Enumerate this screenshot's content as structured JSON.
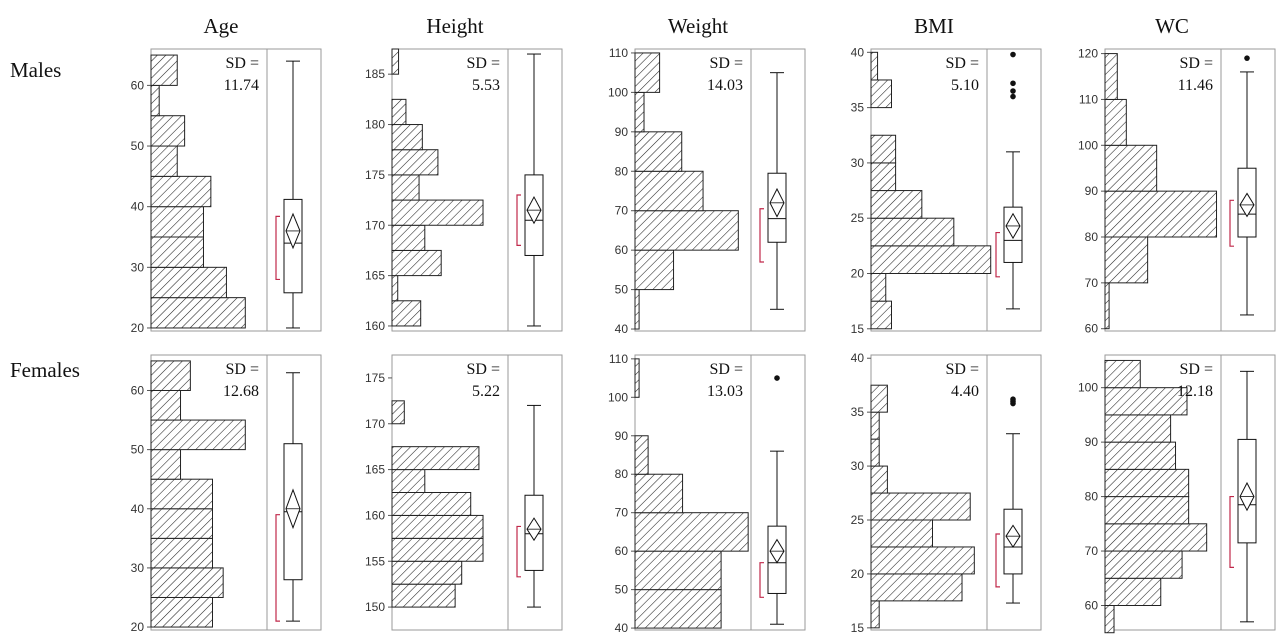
{
  "columns": [
    "Age",
    "Height",
    "Weight",
    "BMI",
    "WC"
  ],
  "rows": [
    "Males",
    "Females"
  ],
  "sd_label": "SD =",
  "chart_data": [
    {
      "type": "histogram_boxplot",
      "group": "Males",
      "variable": "Age",
      "ylim": [
        19.5,
        66
      ],
      "yticks": [
        20,
        30,
        40,
        50,
        60
      ],
      "sd": "11.74",
      "bins": [
        [
          20,
          25,
          11.5
        ],
        [
          25,
          30,
          9.2
        ],
        [
          30,
          35,
          6.4
        ],
        [
          35,
          40,
          6.4
        ],
        [
          40,
          45,
          7.3
        ],
        [
          45,
          50,
          3.2
        ],
        [
          50,
          55,
          4.1
        ],
        [
          55,
          60,
          1.0
        ],
        [
          60,
          65,
          3.2
        ]
      ],
      "box": {
        "min": 20,
        "q1": 25.8,
        "median": 34,
        "q3": 41.2,
        "max": 64,
        "mean": 36,
        "mean_ci": [
          33.2,
          38.8
        ],
        "shortest_half": [
          28,
          38.4
        ]
      },
      "outliers": []
    },
    {
      "type": "histogram_boxplot",
      "group": "Males",
      "variable": "Height",
      "ylim": [
        159.5,
        187.5
      ],
      "yticks": [
        160,
        165,
        170,
        175,
        180,
        185
      ],
      "sd": "5.53",
      "bins": [
        [
          160,
          162.5,
          3.5
        ],
        [
          162.5,
          165,
          0.7
        ],
        [
          165,
          167.5,
          6.0
        ],
        [
          167.5,
          170,
          4.0
        ],
        [
          170,
          172.5,
          11.1
        ],
        [
          172.5,
          175,
          3.3
        ],
        [
          175,
          177.5,
          5.6
        ],
        [
          177.5,
          180,
          3.7
        ],
        [
          180,
          182.5,
          1.7
        ],
        [
          182.5,
          185,
          0
        ],
        [
          185,
          187.5,
          0.8
        ]
      ],
      "box": {
        "min": 160,
        "q1": 167,
        "median": 170.5,
        "q3": 175,
        "max": 187,
        "mean": 171.5,
        "mean_ci": [
          170.2,
          172.8
        ],
        "shortest_half": [
          168,
          173
        ]
      },
      "outliers": []
    },
    {
      "type": "histogram_boxplot",
      "group": "Males",
      "variable": "Weight",
      "ylim": [
        39.5,
        111
      ],
      "yticks": [
        40,
        50,
        60,
        70,
        80,
        90,
        100,
        110
      ],
      "sd": "14.03",
      "bins": [
        [
          40,
          50,
          0.5
        ],
        [
          50,
          60,
          4.7
        ],
        [
          60,
          70,
          12.6
        ],
        [
          70,
          80,
          8.3
        ],
        [
          80,
          90,
          5.7
        ],
        [
          90,
          100,
          1.1
        ],
        [
          100,
          110,
          3.0
        ]
      ],
      "box": {
        "min": 45,
        "q1": 62,
        "median": 68,
        "q3": 79.5,
        "max": 105,
        "mean": 72,
        "mean_ci": [
          68.5,
          75.5
        ],
        "shortest_half": [
          57,
          70.5
        ]
      },
      "outliers": []
    },
    {
      "type": "histogram_boxplot",
      "group": "Males",
      "variable": "BMI",
      "ylim": [
        14.8,
        40.3
      ],
      "yticks": [
        15,
        20,
        25,
        30,
        35,
        40
      ],
      "sd": "5.10",
      "bins": [
        [
          15,
          17.5,
          2.5
        ],
        [
          17.5,
          20,
          1.8
        ],
        [
          20,
          22.5,
          14.6
        ],
        [
          22.5,
          25,
          10.1
        ],
        [
          25,
          27.5,
          6.2
        ],
        [
          27.5,
          30,
          3.0
        ],
        [
          30,
          32.5,
          3.0
        ],
        [
          32.5,
          35,
          0
        ],
        [
          35,
          37.5,
          2.5
        ],
        [
          37.5,
          40,
          0.8
        ]
      ],
      "box": {
        "min": 16.8,
        "q1": 21,
        "median": 23,
        "q3": 26,
        "max": 31,
        "mean": 24.3,
        "mean_ci": [
          23.2,
          25.4
        ],
        "shortest_half": [
          19.7,
          23.7
        ]
      },
      "outliers": [
        36,
        36.5,
        37.2,
        39.8
      ]
    },
    {
      "type": "histogram_boxplot",
      "group": "Males",
      "variable": "WC",
      "ylim": [
        59.5,
        121
      ],
      "yticks": [
        60,
        70,
        80,
        90,
        100,
        110,
        120
      ],
      "sd": "11.46",
      "bins": [
        [
          60,
          70,
          0.5
        ],
        [
          70,
          80,
          5.2
        ],
        [
          80,
          90,
          13.6
        ],
        [
          90,
          100,
          6.3
        ],
        [
          100,
          110,
          2.6
        ],
        [
          110,
          120,
          1.5
        ]
      ],
      "box": {
        "min": 63,
        "q1": 80,
        "median": 85,
        "q3": 95,
        "max": 116,
        "mean": 87,
        "mean_ci": [
          84.5,
          89.5
        ],
        "shortest_half": [
          78,
          88
        ]
      },
      "outliers": [
        119
      ]
    },
    {
      "type": "histogram_boxplot",
      "group": "Females",
      "variable": "Age",
      "ylim": [
        19.5,
        66
      ],
      "yticks": [
        20,
        30,
        40,
        50,
        60
      ],
      "sd": "12.68",
      "bins": [
        [
          20,
          25,
          7.5
        ],
        [
          25,
          30,
          8.8
        ],
        [
          30,
          35,
          7.5
        ],
        [
          35,
          40,
          7.5
        ],
        [
          40,
          45,
          7.5
        ],
        [
          45,
          50,
          3.6
        ],
        [
          50,
          55,
          11.5
        ],
        [
          55,
          60,
          3.6
        ],
        [
          60,
          65,
          4.8
        ]
      ],
      "box": {
        "min": 21,
        "q1": 28,
        "median": 39.5,
        "q3": 51,
        "max": 63,
        "mean": 40,
        "mean_ci": [
          36.8,
          43.2
        ],
        "shortest_half": [
          21,
          39
        ]
      },
      "outliers": []
    },
    {
      "type": "histogram_boxplot",
      "group": "Females",
      "variable": "Height",
      "ylim": [
        147.5,
        177.5
      ],
      "yticks": [
        150,
        155,
        160,
        165,
        170,
        175
      ],
      "sd": "5.22",
      "bins": [
        [
          150,
          152.5,
          7.7
        ],
        [
          152.5,
          155,
          8.5
        ],
        [
          155,
          157.5,
          11.1
        ],
        [
          157.5,
          160,
          11.1
        ],
        [
          160,
          162.5,
          9.6
        ],
        [
          162.5,
          165,
          4.0
        ],
        [
          165,
          167.5,
          10.6
        ],
        [
          167.5,
          170,
          0
        ],
        [
          170,
          172.5,
          1.5
        ]
      ],
      "box": {
        "min": 150,
        "q1": 154,
        "median": 158,
        "q3": 162.2,
        "max": 172,
        "mean": 158.5,
        "mean_ci": [
          157.3,
          159.7
        ],
        "shortest_half": [
          153.3,
          158.8
        ]
      },
      "outliers": []
    },
    {
      "type": "histogram_boxplot",
      "group": "Females",
      "variable": "Weight",
      "ylim": [
        39.5,
        111
      ],
      "yticks": [
        40,
        50,
        60,
        70,
        80,
        90,
        100,
        110
      ],
      "sd": "13.03",
      "bins": [
        [
          40,
          50,
          10.5
        ],
        [
          50,
          60,
          10.5
        ],
        [
          60,
          70,
          13.8
        ],
        [
          70,
          80,
          5.8
        ],
        [
          80,
          90,
          1.6
        ],
        [
          90,
          100,
          0
        ],
        [
          100,
          110,
          0.5
        ]
      ],
      "box": {
        "min": 41,
        "q1": 49,
        "median": 57,
        "q3": 66.5,
        "max": 86,
        "mean": 60,
        "mean_ci": [
          57,
          63
        ],
        "shortest_half": [
          48,
          57
        ]
      },
      "outliers": [
        105
      ]
    },
    {
      "type": "histogram_boxplot",
      "group": "Females",
      "variable": "BMI",
      "ylim": [
        14.8,
        40.3
      ],
      "yticks": [
        15,
        20,
        25,
        30,
        35,
        40
      ],
      "sd": "4.40",
      "bins": [
        [
          15,
          17.5,
          1.0
        ],
        [
          17.5,
          20,
          11.1
        ],
        [
          20,
          22.5,
          12.6
        ],
        [
          22.5,
          25,
          7.5
        ],
        [
          25,
          27.5,
          12.1
        ],
        [
          27.5,
          30,
          2.0
        ],
        [
          30,
          32.5,
          1.0
        ],
        [
          32.5,
          35,
          1.0
        ],
        [
          35,
          37.5,
          2.0
        ]
      ],
      "box": {
        "min": 17.3,
        "q1": 20,
        "median": 22.5,
        "q3": 26,
        "max": 33,
        "mean": 23.5,
        "mean_ci": [
          22.5,
          24.5
        ],
        "shortest_half": [
          18.8,
          23.7
        ]
      },
      "outliers": [
        35.8,
        36,
        36.2
      ]
    },
    {
      "type": "histogram_boxplot",
      "group": "Females",
      "variable": "WC",
      "ylim": [
        55.5,
        106
      ],
      "yticks": [
        60,
        70,
        80,
        90,
        100
      ],
      "sd": "12.18",
      "bins": [
        [
          55,
          60,
          1.1
        ],
        [
          60,
          65,
          6.8
        ],
        [
          65,
          70,
          9.4
        ],
        [
          70,
          75,
          12.4
        ],
        [
          75,
          80,
          10.2
        ],
        [
          80,
          85,
          10.2
        ],
        [
          85,
          90,
          8.6
        ],
        [
          90,
          95,
          8.0
        ],
        [
          95,
          100,
          10.0
        ],
        [
          100,
          105,
          4.3
        ]
      ],
      "box": {
        "min": 57,
        "q1": 71.5,
        "median": 78.5,
        "q3": 90.5,
        "max": 103,
        "mean": 80,
        "mean_ci": [
          77.5,
          82.5
        ],
        "shortest_half": [
          67,
          80
        ]
      },
      "outliers": []
    }
  ]
}
